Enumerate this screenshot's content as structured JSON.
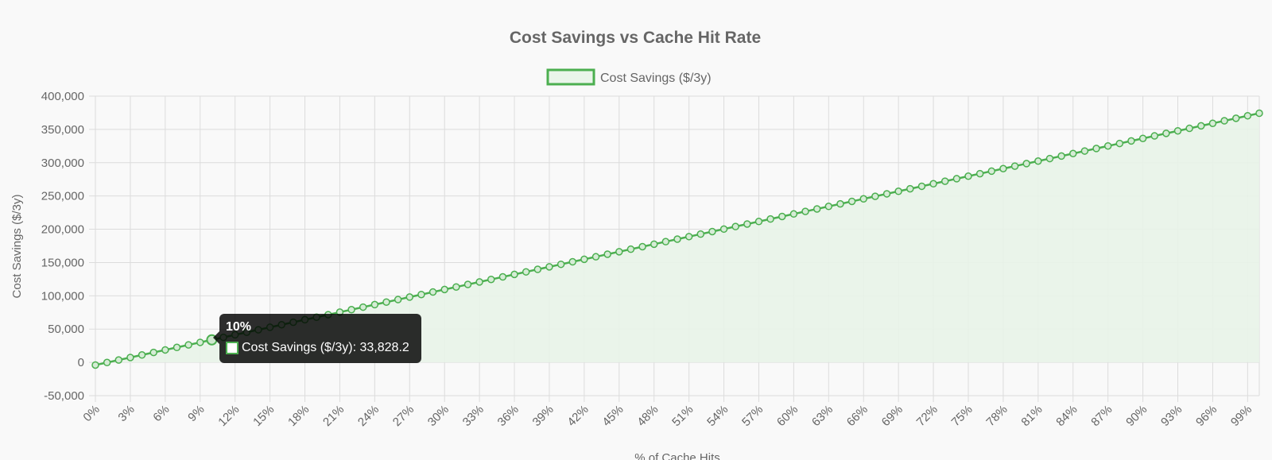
{
  "colors": {
    "line": "#4caf50",
    "fill": "#e8f3e8",
    "grid": "#dcdcdc",
    "text": "#666666"
  },
  "chart_data": {
    "type": "line",
    "title": "Cost Savings vs Cache Hit Rate",
    "xlabel": "% of Cache Hits",
    "ylabel": "Cost Savings ($/3y)",
    "ylim": [
      -50000,
      400000
    ],
    "yticks": [
      "400,000",
      "350,000",
      "300,000",
      "250,000",
      "200,000",
      "150,000",
      "100,000",
      "50,000",
      "0",
      "-50,000"
    ],
    "xtick_labels": [
      "0%",
      "3%",
      "6%",
      "9%",
      "12%",
      "15%",
      "18%",
      "21%",
      "24%",
      "27%",
      "30%",
      "33%",
      "36%",
      "39%",
      "42%",
      "45%",
      "48%",
      "51%",
      "54%",
      "57%",
      "60%",
      "63%",
      "66%",
      "69%",
      "72%",
      "75%",
      "78%",
      "81%",
      "84%",
      "87%",
      "90%",
      "93%",
      "96%",
      "99%"
    ],
    "x_start": 0,
    "x_end": 100,
    "series": [
      {
        "name": "Cost Savings ($/3y)",
        "start_value": -4000,
        "step_value": 3783,
        "count": 101
      }
    ],
    "legend": "top-center",
    "grid": true
  },
  "tooltip": {
    "title": "10%",
    "label": "Cost Savings ($/3y): 33,828.2",
    "point_index": 10
  }
}
